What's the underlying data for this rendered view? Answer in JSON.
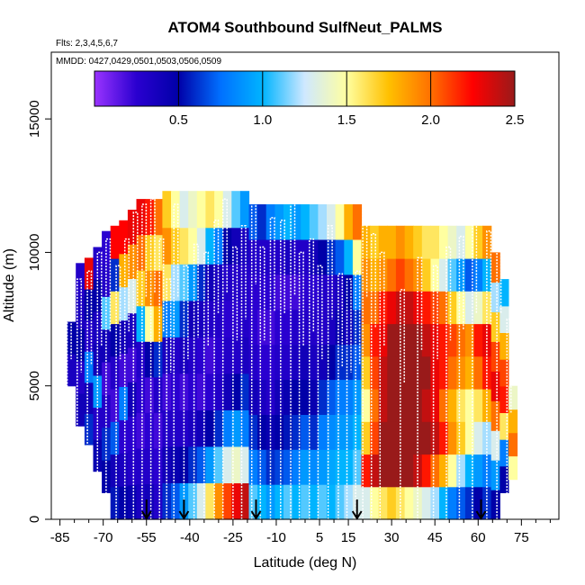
{
  "chart_data": {
    "type": "heatmap",
    "title": "ATOM4 Southbound SulfNeut_PALMS",
    "flights_note": "Flts: 2,3,4,5,6,7",
    "dates_note": "MMDD: 0427,0429,0501,0503,0506,0509",
    "xlabel": "Latitude (deg N)",
    "ylabel": "Altitude (m)",
    "xlim": [
      -88,
      88
    ],
    "ylim": [
      0,
      17500
    ],
    "x_ticks": [
      -85,
      -70,
      -55,
      -40,
      -25,
      -10,
      5,
      15,
      30,
      45,
      60,
      75
    ],
    "x_minor_ticks": [
      -80,
      -75,
      -65,
      -60,
      -50,
      -45,
      -35,
      -30,
      -20,
      -15,
      -5,
      0,
      10,
      20,
      25,
      35,
      40,
      50,
      55,
      65,
      70,
      80,
      85
    ],
    "y_ticks": [
      0,
      5000,
      10000,
      15000
    ],
    "colorbar": {
      "range": [
        0,
        2.5
      ],
      "ticks": [
        0.5,
        1.0,
        1.5,
        2.0,
        2.5
      ],
      "tick_labels": [
        "0.5",
        "1.0",
        "1.5",
        "2.0",
        "2.5"
      ],
      "stops": [
        {
          "v": 0.0,
          "color": "#9a33ff"
        },
        {
          "v": 0.25,
          "color": "#2a00d0"
        },
        {
          "v": 0.5,
          "color": "#0000a8"
        },
        {
          "v": 0.75,
          "color": "#0070ff"
        },
        {
          "v": 1.0,
          "color": "#00b4ff"
        },
        {
          "v": 1.25,
          "color": "#cfe8ff"
        },
        {
          "v": 1.5,
          "color": "#ffffa0"
        },
        {
          "v": 1.75,
          "color": "#ffc000"
        },
        {
          "v": 2.0,
          "color": "#ff7000"
        },
        {
          "v": 2.25,
          "color": "#ff0000"
        },
        {
          "v": 2.5,
          "color": "#991a1a"
        }
      ]
    },
    "arrow_latitudes": [
      -55,
      -42,
      -17,
      18,
      61
    ],
    "columns": [
      {
        "lat": -81,
        "top": 7400,
        "bottom": 5000,
        "vals": [
          0.35,
          0.5
        ]
      },
      {
        "lat": -78,
        "top": 9600,
        "bottom": 3500,
        "vals": [
          0.4,
          0.3,
          0.5,
          0.35,
          0.3
        ]
      },
      {
        "lat": -75,
        "top": 9800,
        "bottom": 2800,
        "vals": [
          0.6,
          0.4,
          0.8,
          0.3,
          0.5,
          2.3
        ]
      },
      {
        "lat": -72,
        "top": 10200,
        "bottom": 1800,
        "vals": [
          0.45,
          0.3,
          0.9,
          0.4,
          0.35,
          0.5,
          0.3
        ]
      },
      {
        "lat": -69,
        "top": 10800,
        "bottom": 1000,
        "vals": [
          0.5,
          0.6,
          0.3,
          0.2,
          0.4,
          1.1,
          0.3,
          0.25
        ]
      },
      {
        "lat": -66,
        "top": 11000,
        "bottom": 0,
        "vals": [
          0.55,
          0.4,
          0.7,
          0.2,
          0.3,
          0.5,
          1.6,
          0.6,
          2.25
        ]
      },
      {
        "lat": -63,
        "top": 11200,
        "bottom": 0,
        "vals": [
          0.5,
          0.35,
          0.25,
          0.8,
          0.2,
          0.4,
          1.2,
          1.8,
          2.25
        ]
      },
      {
        "lat": -60,
        "top": 11600,
        "bottom": 0,
        "vals": [
          0.45,
          0.3,
          0.25,
          0.4,
          0.2,
          0.35,
          1.3,
          1.9,
          2.3
        ]
      },
      {
        "lat": -57,
        "top": 12000,
        "bottom": 0,
        "vals": [
          0.35,
          0.3,
          0.2,
          0.25,
          0.3,
          1.0,
          1.7,
          2.0,
          2.3
        ]
      },
      {
        "lat": -54,
        "top": 12000,
        "bottom": 0,
        "vals": [
          0.4,
          0.3,
          0.25,
          0.2,
          0.5,
          1.5,
          1.9,
          1.7,
          2.2
        ]
      },
      {
        "lat": -51,
        "top": 12000,
        "bottom": 0,
        "vals": [
          0.3,
          0.25,
          0.2,
          0.3,
          0.6,
          1.8,
          2.0,
          1.6,
          2.0
        ]
      },
      {
        "lat": -48,
        "top": 12300,
        "bottom": 0,
        "vals": [
          0.6,
          0.4,
          0.3,
          0.2,
          0.35,
          0.8,
          1.6,
          1.9,
          1.7
        ]
      },
      {
        "lat": -45,
        "top": 12300,
        "bottom": 0,
        "vals": [
          0.7,
          0.45,
          0.3,
          0.25,
          0.3,
          0.9,
          1.2,
          1.7,
          1.5
        ]
      },
      {
        "lat": -42,
        "top": 12300,
        "bottom": 0,
        "vals": [
          0.9,
          0.5,
          0.3,
          0.2,
          0.35,
          0.6,
          1.1,
          1.6,
          1.3
        ]
      },
      {
        "lat": -39,
        "top": 12300,
        "bottom": 0,
        "vals": [
          1.1,
          0.6,
          0.35,
          0.25,
          0.3,
          0.4,
          0.9,
          1.5,
          1.4
        ]
      },
      {
        "lat": -36,
        "top": 12300,
        "bottom": 0,
        "vals": [
          1.3,
          0.7,
          0.4,
          0.2,
          0.25,
          0.35,
          0.6,
          1.3,
          1.5
        ]
      },
      {
        "lat": -33,
        "top": 12300,
        "bottom": 0,
        "vals": [
          1.6,
          0.9,
          0.5,
          0.25,
          0.2,
          0.3,
          0.4,
          1.0,
          1.6
        ]
      },
      {
        "lat": -30,
        "top": 12300,
        "bottom": 0,
        "vals": [
          1.9,
          1.1,
          0.6,
          0.3,
          0.25,
          0.3,
          0.35,
          0.8,
          1.5
        ]
      },
      {
        "lat": -27,
        "top": 12300,
        "bottom": 0,
        "vals": [
          2.1,
          1.3,
          0.8,
          0.4,
          0.3,
          0.25,
          0.3,
          0.5,
          1.3
        ]
      },
      {
        "lat": -24,
        "top": 12300,
        "bottom": 0,
        "vals": [
          2.3,
          1.4,
          0.9,
          0.5,
          0.3,
          0.25,
          0.3,
          0.4,
          1.1
        ]
      },
      {
        "lat": -21,
        "top": 12300,
        "bottom": 0,
        "vals": [
          2.4,
          1.3,
          0.8,
          0.6,
          0.35,
          0.3,
          0.3,
          0.35,
          0.9
        ]
      },
      {
        "lat": -18,
        "top": 11800,
        "bottom": 0,
        "vals": [
          1.1,
          0.8,
          0.6,
          0.4,
          0.3,
          0.25,
          0.25,
          0.3,
          0.7
        ]
      },
      {
        "lat": -15,
        "top": 11800,
        "bottom": 0,
        "vals": [
          1.0,
          0.7,
          0.5,
          0.35,
          0.25,
          0.2,
          0.25,
          0.3,
          0.6
        ]
      },
      {
        "lat": -12,
        "top": 11800,
        "bottom": 0,
        "vals": [
          0.9,
          0.6,
          0.45,
          0.3,
          0.25,
          0.2,
          0.25,
          0.3,
          0.8
        ]
      },
      {
        "lat": -9,
        "top": 11800,
        "bottom": 0,
        "vals": [
          1.0,
          0.65,
          0.5,
          0.4,
          0.3,
          0.25,
          0.2,
          0.3,
          0.9
        ]
      },
      {
        "lat": -6,
        "top": 11800,
        "bottom": 0,
        "vals": [
          1.1,
          0.7,
          0.55,
          0.45,
          0.3,
          0.25,
          0.2,
          0.35,
          1.0
        ]
      },
      {
        "lat": -3,
        "top": 11800,
        "bottom": 0,
        "vals": [
          1.0,
          0.8,
          0.6,
          0.5,
          0.35,
          0.3,
          0.2,
          0.3,
          0.9
        ]
      },
      {
        "lat": 0,
        "top": 11800,
        "bottom": 0,
        "vals": [
          1.1,
          0.9,
          0.7,
          0.5,
          0.4,
          0.3,
          0.25,
          0.3,
          1.0
        ]
      },
      {
        "lat": 3,
        "top": 11800,
        "bottom": 0,
        "vals": [
          1.0,
          0.85,
          0.6,
          0.45,
          0.35,
          0.3,
          0.25,
          0.4,
          1.1
        ]
      },
      {
        "lat": 6,
        "top": 11800,
        "bottom": 0,
        "vals": [
          1.1,
          0.9,
          0.8,
          0.6,
          0.4,
          0.3,
          0.3,
          0.5,
          1.2
        ]
      },
      {
        "lat": 9,
        "top": 11800,
        "bottom": 0,
        "vals": [
          1.0,
          0.95,
          0.85,
          0.7,
          0.5,
          0.35,
          0.3,
          0.6,
          1.3
        ]
      },
      {
        "lat": 12,
        "top": 11800,
        "bottom": 0,
        "vals": [
          1.1,
          1.0,
          0.9,
          0.8,
          0.6,
          0.45,
          0.35,
          0.7,
          1.5
        ]
      },
      {
        "lat": 15,
        "top": 11800,
        "bottom": 0,
        "vals": [
          1.2,
          1.0,
          0.9,
          0.8,
          0.6,
          0.4,
          0.5,
          1.0,
          1.8
        ]
      },
      {
        "lat": 18,
        "top": 11800,
        "bottom": 0,
        "vals": [
          1.3,
          1.1,
          1.0,
          0.9,
          0.7,
          0.6,
          0.8,
          1.5,
          2.0
        ]
      },
      {
        "lat": 21,
        "top": 11000,
        "bottom": 0,
        "vals": [
          1.3,
          2.2,
          1.7,
          1.5,
          1.7,
          1.9,
          2.0,
          1.9,
          1.8
        ]
      },
      {
        "lat": 24,
        "top": 11000,
        "bottom": 0,
        "vals": [
          1.5,
          2.4,
          2.1,
          2.0,
          2.1,
          2.2,
          2.0,
          1.8,
          1.7
        ]
      },
      {
        "lat": 27,
        "top": 11000,
        "bottom": 0,
        "vals": [
          1.6,
          2.5,
          2.5,
          2.4,
          2.4,
          2.3,
          2.2,
          1.9,
          1.8
        ]
      },
      {
        "lat": 30,
        "top": 11000,
        "bottom": 0,
        "vals": [
          1.7,
          2.5,
          2.5,
          2.5,
          2.5,
          2.5,
          2.3,
          2.0,
          1.8
        ]
      },
      {
        "lat": 33,
        "top": 11000,
        "bottom": 0,
        "vals": [
          1.6,
          2.5,
          2.5,
          2.5,
          2.5,
          2.5,
          2.4,
          2.1,
          1.9
        ]
      },
      {
        "lat": 36,
        "top": 11000,
        "bottom": 0,
        "vals": [
          1.5,
          2.5,
          2.5,
          2.5,
          2.5,
          2.5,
          2.4,
          2.0,
          1.8
        ]
      },
      {
        "lat": 39,
        "top": 11000,
        "bottom": 0,
        "vals": [
          1.4,
          2.4,
          2.5,
          2.5,
          2.5,
          2.5,
          2.3,
          1.9,
          1.7
        ]
      },
      {
        "lat": 42,
        "top": 11000,
        "bottom": 0,
        "vals": [
          1.3,
          2.2,
          2.5,
          2.4,
          2.5,
          2.4,
          2.2,
          1.7,
          1.6
        ]
      },
      {
        "lat": 45,
        "top": 11000,
        "bottom": 0,
        "vals": [
          1.2,
          2.0,
          2.4,
          2.3,
          2.3,
          2.3,
          2.1,
          1.5,
          1.6
        ]
      },
      {
        "lat": 48,
        "top": 11000,
        "bottom": 0,
        "vals": [
          1.0,
          1.8,
          2.2,
          2.0,
          2.2,
          2.2,
          2.0,
          1.3,
          1.5
        ]
      },
      {
        "lat": 51,
        "top": 11000,
        "bottom": 0,
        "vals": [
          0.8,
          1.5,
          1.9,
          1.8,
          2.0,
          2.1,
          1.7,
          1.1,
          1.4
        ]
      },
      {
        "lat": 54,
        "top": 11000,
        "bottom": 0,
        "vals": [
          0.7,
          1.2,
          1.7,
          1.6,
          1.9,
          2.0,
          1.5,
          0.9,
          1.3
        ]
      },
      {
        "lat": 57,
        "top": 11000,
        "bottom": 0,
        "vals": [
          0.6,
          1.0,
          1.5,
          1.5,
          1.8,
          1.9,
          1.3,
          0.7,
          1.5
        ]
      },
      {
        "lat": 60,
        "top": 11000,
        "bottom": 0,
        "vals": [
          0.5,
          0.9,
          1.3,
          1.6,
          2.0,
          2.2,
          1.4,
          0.8,
          1.7
        ]
      },
      {
        "lat": 63,
        "top": 11000,
        "bottom": 0,
        "vals": [
          0.6,
          0.8,
          1.2,
          1.8,
          2.2,
          2.3,
          1.6,
          1.0,
          1.9
        ]
      },
      {
        "lat": 66,
        "top": 10000,
        "bottom": 0,
        "vals": [
          0.5,
          0.9,
          1.3,
          2.0,
          2.3,
          2.1,
          1.7,
          1.2,
          2.0
        ]
      },
      {
        "lat": 69,
        "top": 9000,
        "bottom": 1000,
        "vals": [
          0.5,
          0.8,
          1.6,
          2.2,
          2.1,
          1.8,
          1.3,
          1.0
        ]
      },
      {
        "lat": 72,
        "top": 5000,
        "bottom": 1500,
        "vals": [
          1.5,
          2.0,
          1.8,
          1.4
        ]
      }
    ],
    "profiles": [
      {
        "lat": -82.5,
        "top": 9500
      },
      {
        "lat": -79,
        "top": 9000
      },
      {
        "lat": -75.5,
        "top": 9300
      },
      {
        "lat": -72,
        "top": 10000
      },
      {
        "lat": -69,
        "top": 10500
      },
      {
        "lat": -65.5,
        "top": 9500
      },
      {
        "lat": -62.5,
        "top": 10500
      },
      {
        "lat": -59.5,
        "top": 11500
      },
      {
        "lat": -56.5,
        "top": 11800
      },
      {
        "lat": -53.5,
        "top": 12000
      },
      {
        "lat": -50.5,
        "top": 10500
      },
      {
        "lat": -48,
        "top": 9000
      },
      {
        "lat": -45.5,
        "top": 11800
      },
      {
        "lat": -42,
        "top": 9500
      },
      {
        "lat": -38.5,
        "top": 10300
      },
      {
        "lat": -35,
        "top": 10000
      },
      {
        "lat": -31.5,
        "top": 11200
      },
      {
        "lat": -28.5,
        "top": 12000
      },
      {
        "lat": -25,
        "top": 10200
      },
      {
        "lat": -22,
        "top": 11000
      },
      {
        "lat": -18.5,
        "top": 12300
      },
      {
        "lat": -15.5,
        "top": 10200
      },
      {
        "lat": -12,
        "top": 11300
      },
      {
        "lat": -8.5,
        "top": 11200
      },
      {
        "lat": -5,
        "top": 11900
      },
      {
        "lat": -2,
        "top": 10000
      },
      {
        "lat": 1.5,
        "top": 10500
      },
      {
        "lat": 4.5,
        "top": 9500
      },
      {
        "lat": 8,
        "top": 11000
      },
      {
        "lat": 11.5,
        "top": 9200
      },
      {
        "lat": 14.5,
        "top": 9000
      },
      {
        "lat": 17.5,
        "top": 9300
      },
      {
        "lat": 20,
        "top": 11800
      },
      {
        "lat": 23,
        "top": 10700
      },
      {
        "lat": 26,
        "top": 10000
      },
      {
        "lat": 33,
        "top": 8600
      },
      {
        "lat": 39,
        "top": 9800
      },
      {
        "lat": 44.5,
        "top": 9500
      },
      {
        "lat": 49,
        "top": 10200
      },
      {
        "lat": 53.5,
        "top": 10600
      },
      {
        "lat": 58,
        "top": 11200
      },
      {
        "lat": 63,
        "top": 10800
      },
      {
        "lat": 66.5,
        "top": 11200
      },
      {
        "lat": 70,
        "top": 7500
      }
    ]
  }
}
